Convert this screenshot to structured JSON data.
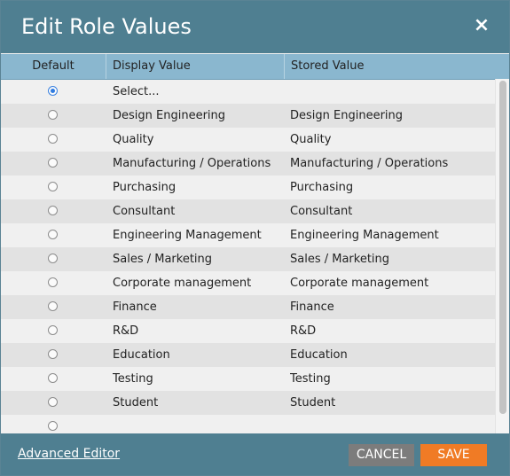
{
  "dialog": {
    "title": "Edit Role Values",
    "close_icon": "×"
  },
  "grid": {
    "columns": [
      "Default",
      "Display Value",
      "Stored Value"
    ],
    "rows": [
      {
        "default": true,
        "display": "Select...",
        "stored": ""
      },
      {
        "default": false,
        "display": "Design Engineering",
        "stored": "Design Engineering"
      },
      {
        "default": false,
        "display": "Quality",
        "stored": "Quality"
      },
      {
        "default": false,
        "display": "Manufacturing / Operations",
        "stored": "Manufacturing / Operations"
      },
      {
        "default": false,
        "display": "Purchasing",
        "stored": "Purchasing"
      },
      {
        "default": false,
        "display": "Consultant",
        "stored": "Consultant"
      },
      {
        "default": false,
        "display": "Engineering Management",
        "stored": "Engineering Management"
      },
      {
        "default": false,
        "display": "Sales / Marketing",
        "stored": "Sales / Marketing"
      },
      {
        "default": false,
        "display": "Corporate management",
        "stored": "Corporate management"
      },
      {
        "default": false,
        "display": "Finance",
        "stored": "Finance"
      },
      {
        "default": false,
        "display": "R&D",
        "stored": "R&D"
      },
      {
        "default": false,
        "display": "Education",
        "stored": "Education"
      },
      {
        "default": false,
        "display": "Testing",
        "stored": "Testing"
      },
      {
        "default": false,
        "display": "Student",
        "stored": "Student"
      },
      {
        "default": false,
        "display": "",
        "stored": ""
      }
    ]
  },
  "footer": {
    "advanced_editor_label": "Advanced Editor",
    "cancel_label": "CANCEL",
    "save_label": "SAVE"
  },
  "colors": {
    "titlebar": "#4f7f91",
    "header": "#8ab7cf",
    "save": "#f07b25",
    "cancel": "#7c7c7c"
  }
}
